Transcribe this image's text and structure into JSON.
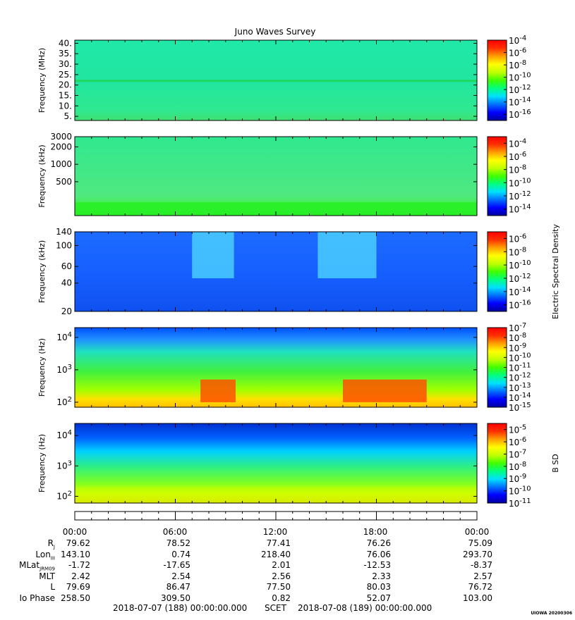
{
  "title": "Juno Waves Survey",
  "colors": {
    "frame": "#000000",
    "colormap": [
      "#0000a0",
      "#0000ff",
      "#0070ff",
      "#00e0ff",
      "#00ff80",
      "#40ff00",
      "#c0ff00",
      "#ffff00",
      "#ffa000",
      "#ff3000",
      "#ff0000"
    ]
  },
  "chart_data": [
    {
      "type": "heatmap",
      "name": "panel-1",
      "ylabel": "Frequency (MHz)",
      "yscale": "linear",
      "ylim": [
        3,
        41.5
      ],
      "yticks": [
        "40.",
        "35.",
        "30.",
        "25.",
        "20.",
        "15.",
        "10.",
        "5."
      ],
      "ytick_values": [
        40,
        35,
        30,
        25,
        20,
        15,
        10,
        5
      ],
      "colorbar": {
        "ticks": [
          "10^-4",
          "10^-6",
          "10^-8",
          "10^-10",
          "10^-12",
          "10^-14",
          "10^-16"
        ],
        "exponents": [
          -4,
          -6,
          -8,
          -10,
          -12,
          -14,
          -16
        ],
        "range": [
          -17,
          -4
        ],
        "label": ""
      },
      "features": [
        {
          "desc": "narrow green emission band",
          "freq_mhz": [
            21.5,
            22.5
          ],
          "level_exp": -11
        }
      ]
    },
    {
      "type": "heatmap",
      "name": "panel-2",
      "ylabel": "Frequency (kHz)",
      "yscale": "log",
      "ylim": [
        130,
        3000
      ],
      "yticks": [
        "3000",
        "2000",
        "1000",
        "500"
      ],
      "ytick_values": [
        3000,
        2000,
        1000,
        500
      ],
      "colorbar": {
        "ticks": [
          "10^-4",
          "10^-6",
          "10^-8",
          "10^-10",
          "10^-12",
          "10^-14"
        ],
        "exponents": [
          -4,
          -6,
          -8,
          -10,
          -12,
          -14
        ],
        "range": [
          -15,
          -3
        ],
        "label": ""
      },
      "features": [
        {
          "desc": "enhanced band at low frequencies",
          "freq_khz": [
            130,
            220
          ],
          "level_exp": -9
        }
      ]
    },
    {
      "type": "heatmap",
      "name": "panel-3",
      "ylabel": "Frequency (kHz)",
      "yscale": "log",
      "ylim": [
        20,
        140
      ],
      "yticks": [
        "140",
        "100",
        "60",
        "40",
        "20"
      ],
      "ytick_values": [
        140,
        100,
        60,
        40,
        20
      ],
      "colorbar": {
        "ticks": [
          "10^-6",
          "10^-8",
          "10^-10",
          "10^-12",
          "10^-14",
          "10^-16"
        ],
        "exponents": [
          -6,
          -8,
          -10,
          -12,
          -14,
          -16
        ],
        "range": [
          -17,
          -5
        ],
        "label": "Electric Spectral Density"
      },
      "features": [
        {
          "desc": "bursty emission",
          "time_h": [
            7.0,
            9.5
          ],
          "freq_khz": [
            45,
            140
          ]
        },
        {
          "desc": "bursty emission",
          "time_h": [
            14.5,
            18.0
          ],
          "freq_khz": [
            45,
            140
          ]
        }
      ]
    },
    {
      "type": "heatmap",
      "name": "panel-4",
      "ylabel": "Frequency (Hz)",
      "yscale": "log",
      "ylim": [
        70,
        20000
      ],
      "yticks": [
        "10^4",
        "10^3",
        "10^2"
      ],
      "ytick_values": [
        10000,
        1000,
        100
      ],
      "colorbar": {
        "ticks": [
          "10^-7",
          "10^-8",
          "10^-9",
          "10^-10",
          "10^-11",
          "10^-12",
          "10^-13",
          "10^-14",
          "10^-15"
        ],
        "exponents": [
          -7,
          -8,
          -9,
          -10,
          -11,
          -12,
          -13,
          -14,
          -15
        ],
        "range": [
          -15,
          -7
        ],
        "label": ""
      },
      "features": [
        {
          "desc": "intense low-frequency emission",
          "time_h": [
            7.5,
            9.6
          ],
          "freq_hz": [
            100,
            500
          ]
        },
        {
          "desc": "intense low-frequency emission",
          "time_h": [
            16.0,
            21.0
          ],
          "freq_hz": [
            100,
            500
          ]
        }
      ]
    },
    {
      "type": "heatmap",
      "name": "panel-5",
      "ylabel": "Frequency (Hz)",
      "yscale": "log",
      "ylim": [
        60,
        25000
      ],
      "yticks": [
        "10^4",
        "10^3",
        "10^2"
      ],
      "ytick_values": [
        10000,
        1000,
        100
      ],
      "colorbar": {
        "ticks": [
          "10^-5",
          "10^-6",
          "10^-7",
          "10^-8",
          "10^-9",
          "10^-10",
          "10^-11"
        ],
        "exponents": [
          -5,
          -6,
          -7,
          -8,
          -9,
          -10,
          -11
        ],
        "range": [
          -11,
          -4.5
        ],
        "label": "B SD"
      },
      "features": [
        {
          "desc": "broadband low-frequency noise",
          "freq_hz": [
            60,
            200
          ],
          "level_exp": -7
        }
      ]
    }
  ],
  "ephemeris": {
    "times": [
      "00:00",
      "06:00",
      "12:00",
      "18:00",
      "00:00"
    ],
    "rows": [
      {
        "label": "R",
        "sub": "J",
        "values": [
          "79.62",
          "78.52",
          "77.41",
          "76.26",
          "75.09"
        ]
      },
      {
        "label": "Lon",
        "sub": "III",
        "values": [
          "143.10",
          "0.74",
          "218.40",
          "76.06",
          "293.70"
        ]
      },
      {
        "label": "MLat",
        "sub": "JRM09",
        "values": [
          "-1.72",
          "-17.65",
          "2.01",
          "-12.53",
          "-8.37"
        ]
      },
      {
        "label": "MLT",
        "sub": "",
        "values": [
          "2.42",
          "2.54",
          "2.56",
          "2.33",
          "2.57"
        ]
      },
      {
        "label": "L",
        "sub": "",
        "values": [
          "79.69",
          "86.47",
          "77.50",
          "80.03",
          "76.72"
        ]
      },
      {
        "label": "Io Phase",
        "sub": "",
        "values": [
          "258.50",
          "309.50",
          "0.82",
          "52.07",
          "103.00"
        ]
      }
    ]
  },
  "footer": {
    "start": "2018-07-07 (188) 00:00:00.000",
    "scet": "SCET",
    "end": "2018-07-08 (189) 00:00:00.000"
  },
  "stamp": "UIOWA 20200306"
}
